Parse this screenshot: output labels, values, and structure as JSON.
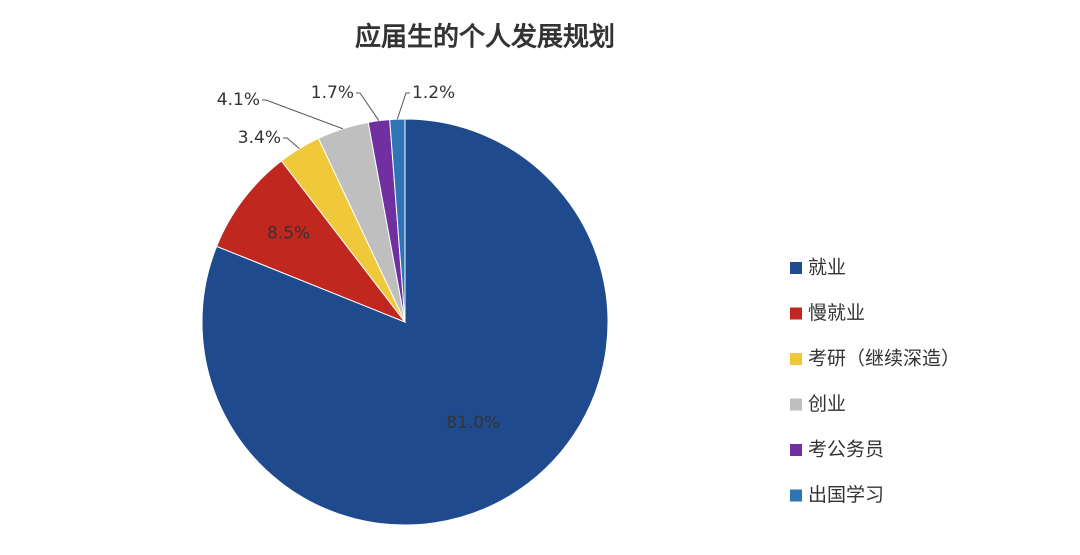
{
  "chart_data": {
    "type": "pie",
    "title": "应届生的个人发展规划",
    "categories": [
      "就业",
      "慢就业",
      "考研（继续深造）",
      "创业",
      "考公务员",
      "出国学习"
    ],
    "values": [
      81.0,
      8.5,
      3.4,
      4.1,
      1.7,
      1.2
    ],
    "value_labels": [
      "81.0%",
      "8.5%",
      "3.4%",
      "4.1%",
      "1.7%",
      "1.2%"
    ],
    "colors": [
      "#1f4a8e",
      "#c0281f",
      "#f0c93a",
      "#bfbfbf",
      "#7030a0",
      "#2e75b6"
    ],
    "legend": "right"
  }
}
